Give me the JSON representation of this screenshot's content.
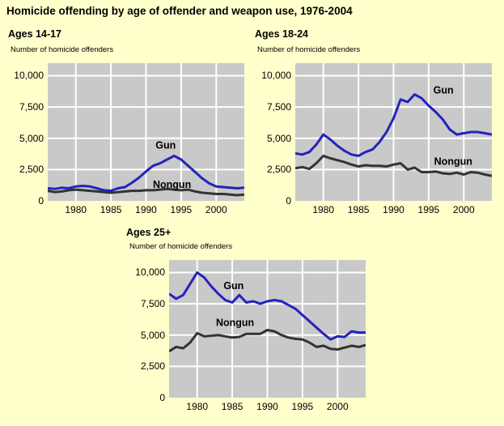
{
  "page": {
    "title": "Homicide offending by age of offender and weapon use, 1976-2004",
    "background_color": "#FFFFCC"
  },
  "colors": {
    "plot_bg": "#C9C9C9",
    "grid": "#FFFFFF",
    "gun": "#2323BD",
    "nongun": "#333333",
    "text": "#000000"
  },
  "chart_data": [
    {
      "type": "line",
      "title": "Ages 14-17",
      "ylabel": "Number of homicide offenders",
      "xlim": [
        1976,
        2004
      ],
      "ylim": [
        0,
        11000
      ],
      "grid": true,
      "legend_position": "inline-annotations",
      "yticks": [
        0,
        2500,
        5000,
        7500,
        10000
      ],
      "ytick_labels": [
        "0",
        "2,500",
        "5,000",
        "7,500",
        "10,000"
      ],
      "xticks": [
        1980,
        1985,
        1990,
        1995,
        2000
      ],
      "xtick_labels": [
        "1980",
        "1985",
        "1990",
        "1995",
        "2000"
      ],
      "x": [
        1976,
        1977,
        1978,
        1979,
        1980,
        1981,
        1982,
        1983,
        1984,
        1985,
        1986,
        1987,
        1988,
        1989,
        1990,
        1991,
        1992,
        1993,
        1994,
        1995,
        1996,
        1997,
        1998,
        1999,
        2000,
        2001,
        2002,
        2003,
        2004
      ],
      "series": [
        {
          "name": "Nongun",
          "color_key": "nongun",
          "values": [
            800,
            700,
            750,
            850,
            900,
            850,
            800,
            750,
            700,
            650,
            700,
            750,
            800,
            800,
            850,
            850,
            900,
            950,
            900,
            850,
            900,
            750,
            650,
            600,
            550,
            550,
            500,
            450,
            500
          ]
        },
        {
          "name": "Gun",
          "color_key": "gun",
          "values": [
            1000,
            950,
            1050,
            1000,
            1150,
            1200,
            1150,
            1000,
            850,
            800,
            1000,
            1100,
            1450,
            1850,
            2350,
            2800,
            3000,
            3300,
            3600,
            3300,
            2800,
            2300,
            1800,
            1400,
            1150,
            1100,
            1050,
            1000,
            1050
          ]
        }
      ],
      "annotations": [
        {
          "text": "Gun",
          "x": 1992.8,
          "y": 4400
        },
        {
          "text": "Nongun",
          "x": 1993.7,
          "y": 1250
        }
      ]
    },
    {
      "type": "line",
      "title": "Ages 18-24",
      "ylabel": "Number of homicide offenders",
      "xlim": [
        1976,
        2004
      ],
      "ylim": [
        0,
        11000
      ],
      "grid": true,
      "legend_position": "inline-annotations",
      "yticks": [
        0,
        2500,
        5000,
        7500,
        10000
      ],
      "ytick_labels": [
        "0",
        "2,500",
        "5,000",
        "7,500",
        "10,000"
      ],
      "xticks": [
        1980,
        1985,
        1990,
        1995,
        2000
      ],
      "xtick_labels": [
        "1980",
        "1985",
        "1990",
        "1995",
        "2000"
      ],
      "x": [
        1976,
        1977,
        1978,
        1979,
        1980,
        1981,
        1982,
        1983,
        1984,
        1985,
        1986,
        1987,
        1988,
        1989,
        1990,
        1991,
        1992,
        1993,
        1994,
        1995,
        1996,
        1997,
        1998,
        1999,
        2000,
        2001,
        2002,
        2003,
        2004
      ],
      "series": [
        {
          "name": "Nongun",
          "color_key": "nongun",
          "values": [
            2600,
            2700,
            2550,
            3000,
            3600,
            3400,
            3250,
            3100,
            2900,
            2750,
            2850,
            2800,
            2800,
            2750,
            2900,
            3000,
            2500,
            2650,
            2300,
            2300,
            2350,
            2200,
            2150,
            2250,
            2100,
            2300,
            2250,
            2100,
            2000
          ]
        },
        {
          "name": "Gun",
          "color_key": "gun",
          "values": [
            3800,
            3700,
            3900,
            4500,
            5300,
            4900,
            4400,
            4000,
            3700,
            3600,
            3900,
            4100,
            4700,
            5500,
            6600,
            8100,
            7900,
            8500,
            8200,
            7600,
            7100,
            6500,
            5700,
            5300,
            5400,
            5500,
            5500,
            5400,
            5300
          ]
        }
      ],
      "annotations": [
        {
          "text": "Gun",
          "x": 1997.1,
          "y": 8800
        },
        {
          "text": "Nongun",
          "x": 1998.5,
          "y": 3100
        }
      ]
    },
    {
      "type": "line",
      "title": "Ages 25+",
      "ylabel": "Number of homicide offenders",
      "xlim": [
        1976,
        2004
      ],
      "ylim": [
        0,
        11000
      ],
      "grid": true,
      "legend_position": "inline-annotations",
      "yticks": [
        0,
        2500,
        5000,
        7500,
        10000
      ],
      "ytick_labels": [
        "0",
        "2,500",
        "5,000",
        "7,500",
        "10,000"
      ],
      "xticks": [
        1980,
        1985,
        1990,
        1995,
        2000
      ],
      "xtick_labels": [
        "1980",
        "1985",
        "1990",
        "1995",
        "2000"
      ],
      "x": [
        1976,
        1977,
        1978,
        1979,
        1980,
        1981,
        1982,
        1983,
        1984,
        1985,
        1986,
        1987,
        1988,
        1989,
        1990,
        1991,
        1992,
        1993,
        1994,
        1995,
        1996,
        1997,
        1998,
        1999,
        2000,
        2001,
        2002,
        2003,
        2004
      ],
      "series": [
        {
          "name": "Nongun",
          "color_key": "nongun",
          "values": [
            3700,
            4050,
            3950,
            4400,
            5150,
            4900,
            4950,
            5000,
            4900,
            4800,
            4850,
            5100,
            5100,
            5100,
            5400,
            5300,
            5000,
            4800,
            4700,
            4650,
            4400,
            4050,
            4150,
            3900,
            3850,
            4000,
            4150,
            4050,
            4200
          ]
        },
        {
          "name": "Gun",
          "color_key": "gun",
          "values": [
            8300,
            7900,
            8200,
            9100,
            10000,
            9600,
            8900,
            8300,
            7800,
            7600,
            8200,
            7600,
            7700,
            7500,
            7700,
            7800,
            7700,
            7400,
            7100,
            6600,
            6100,
            5600,
            5100,
            4650,
            4900,
            4850,
            5300,
            5200,
            5200
          ]
        }
      ],
      "annotations": [
        {
          "text": "Gun",
          "x": 1985.2,
          "y": 8900
        },
        {
          "text": "Nongun",
          "x": 1985.4,
          "y": 5950
        }
      ]
    }
  ]
}
